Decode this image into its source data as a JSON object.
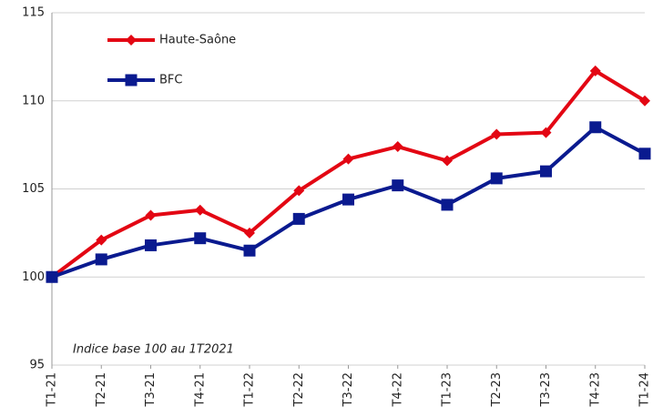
{
  "chart_data": {
    "type": "line",
    "annotation": "Indice base 100 au 1T2021",
    "categories": [
      "T1-21",
      "T2-21",
      "T3-21",
      "T4-21",
      "T1-22",
      "T2-22",
      "T3-22",
      "T4-22",
      "T1-23",
      "T2-23",
      "T3-23",
      "T4-23",
      "T1-24"
    ],
    "series": [
      {
        "name": "Haute-Saône",
        "color": "#e30613",
        "marker": "diamond",
        "values": [
          100,
          102.1,
          103.5,
          103.8,
          102.5,
          104.9,
          106.7,
          107.4,
          106.6,
          108.1,
          108.2,
          111.7,
          110.0
        ]
      },
      {
        "name": "BFC",
        "color": "#0a1a8f",
        "marker": "square",
        "values": [
          100,
          101.0,
          101.8,
          102.2,
          101.5,
          103.3,
          104.4,
          105.2,
          104.1,
          105.6,
          106.0,
          108.5,
          107.0
        ]
      }
    ],
    "ylim": [
      95,
      115
    ],
    "yticks": [
      95,
      100,
      105,
      110,
      115
    ],
    "grid": true
  }
}
